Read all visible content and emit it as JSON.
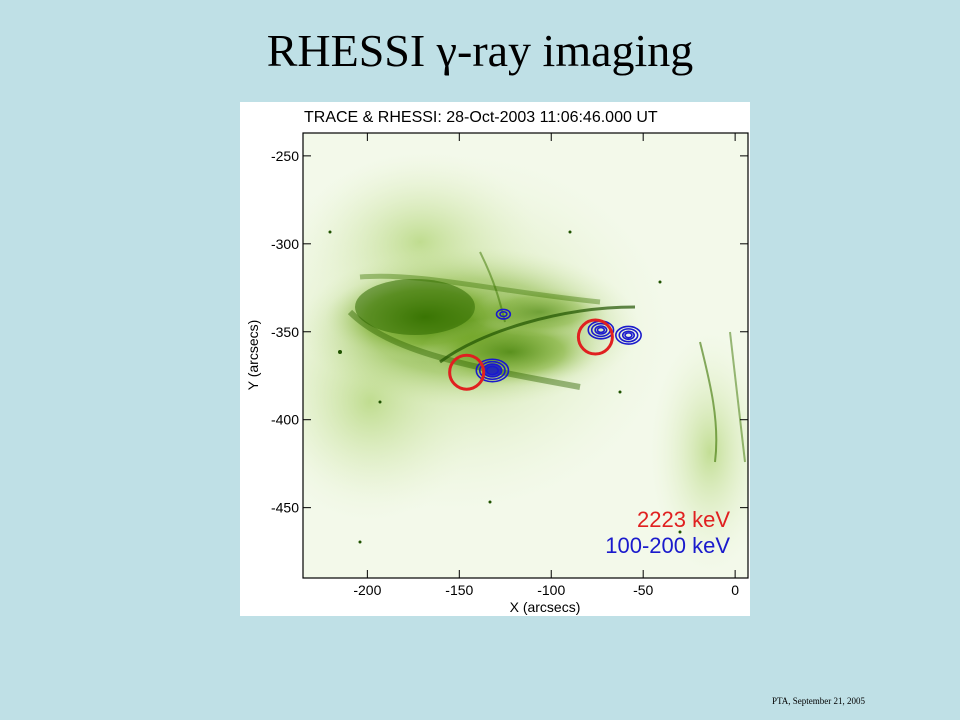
{
  "slide": {
    "title": "RHESSI γ-ray imaging",
    "footer": "PTA, September 21, 2005"
  },
  "plot": {
    "title": "TRACE & RHESSI:  28-Oct-2003 11:06:46.000 UT",
    "xlabel": "X (arcsecs)",
    "ylabel": "Y (arcsecs)",
    "x_ticks": [
      "-200",
      "-150",
      "-100",
      "-50",
      "0"
    ],
    "y_ticks": [
      "-250",
      "-300",
      "-350",
      "-400",
      "-450"
    ],
    "xlim": [
      -235,
      7
    ],
    "ylim": [
      -490,
      -237
    ],
    "legend": [
      {
        "label": "2223 keV",
        "color": "#e02020"
      },
      {
        "label": "100-200 keV",
        "color": "#1a1acc"
      }
    ],
    "sources_2223keV": [
      {
        "x": -146,
        "y": -373
      },
      {
        "x": -76,
        "y": -353
      }
    ],
    "sources_100_200keV": [
      {
        "x": -132,
        "y": -372
      },
      {
        "x": -126,
        "y": -340
      },
      {
        "x": -73,
        "y": -349
      },
      {
        "x": -58,
        "y": -352
      }
    ],
    "colors": {
      "image_tint": "#4f8f00",
      "slide_background": "#bfe0e6"
    }
  }
}
